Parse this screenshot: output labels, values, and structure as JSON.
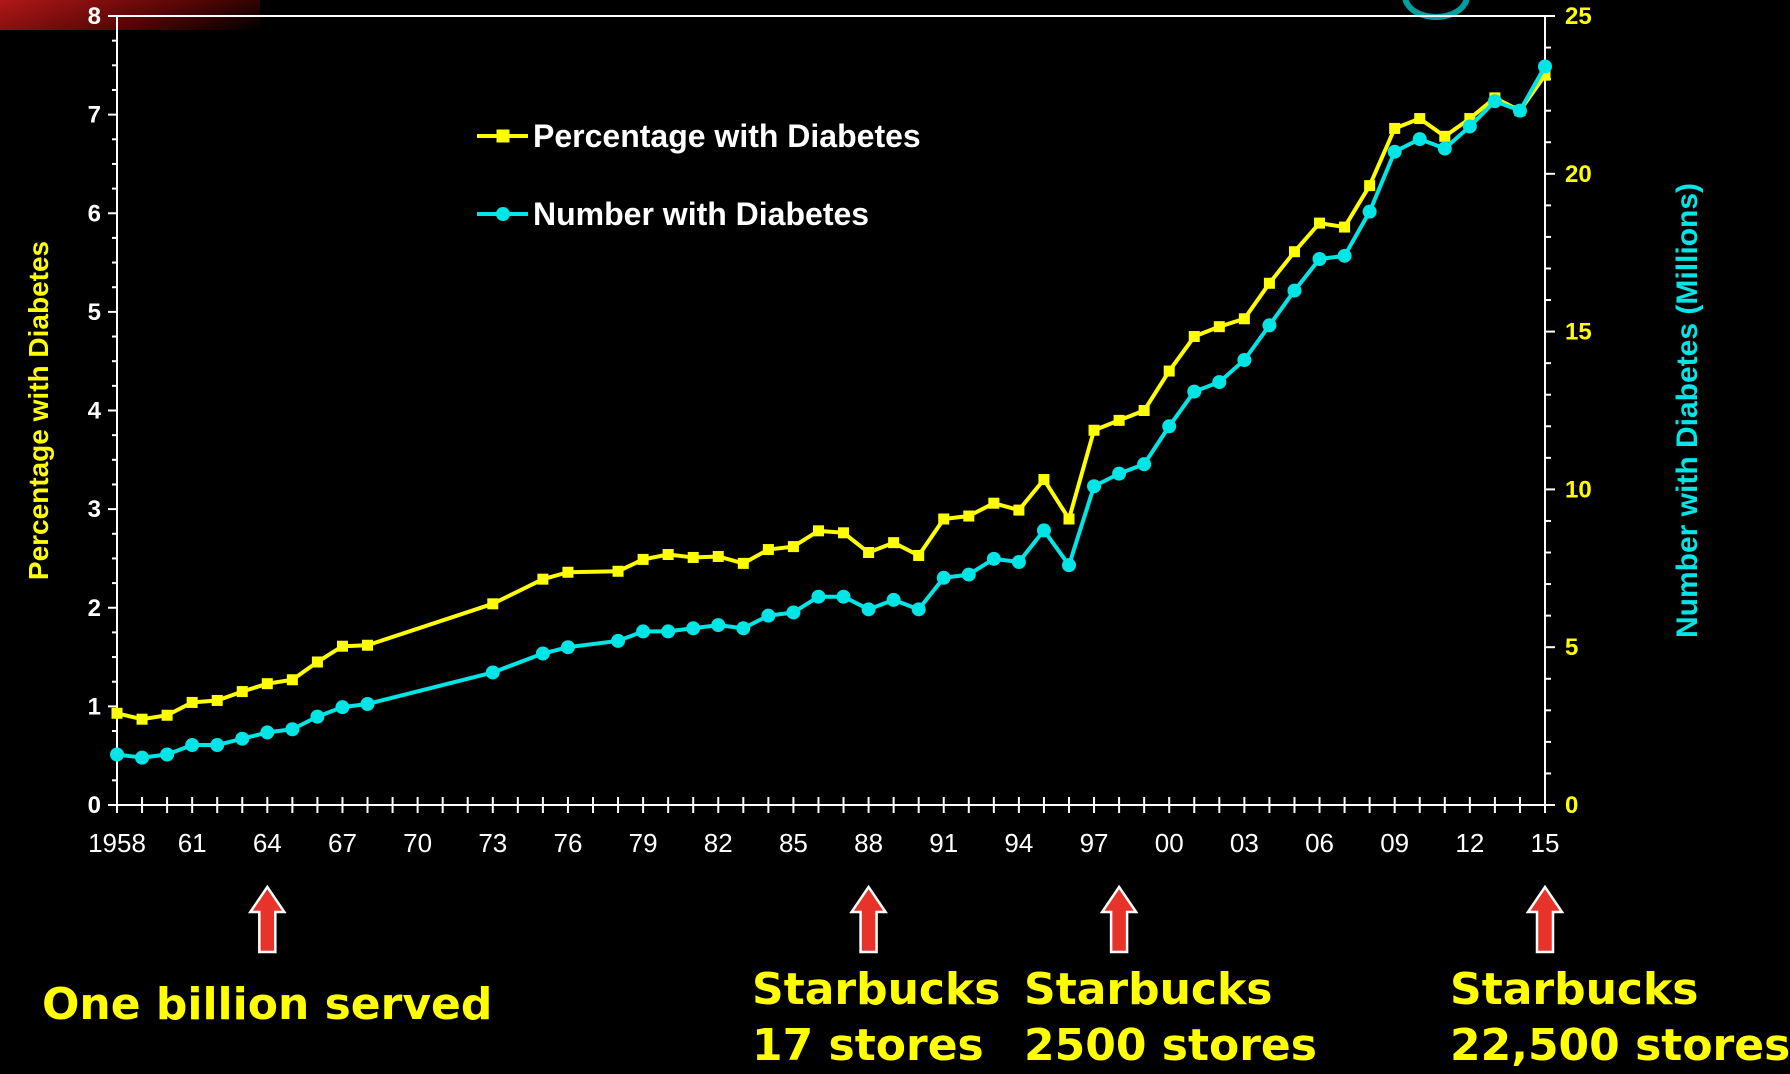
{
  "chart_data": {
    "type": "line",
    "y_left": {
      "label": "Percentage with Diabetes",
      "ticks": [
        "0",
        "1",
        "2",
        "3",
        "4",
        "5",
        "6",
        "7",
        "8"
      ],
      "ylim": [
        0,
        8
      ],
      "color": "#ffff00"
    },
    "y_right": {
      "label": "Number with Diabetes (Millions)",
      "ticks": [
        "0",
        "5",
        "10",
        "15",
        "20",
        "25"
      ],
      "ylim": [
        0,
        25
      ],
      "color": "#00e5e5"
    },
    "x": {
      "xlim": [
        1958,
        2015
      ],
      "tick_values": [
        1958,
        1961,
        1964,
        1967,
        1970,
        1973,
        1976,
        1979,
        1982,
        1985,
        1988,
        1991,
        1994,
        1997,
        2000,
        2003,
        2006,
        2009,
        2012,
        2015
      ],
      "tick_labels": [
        "1958",
        "61",
        "64",
        "67",
        "70",
        "73",
        "76",
        "79",
        "82",
        "85",
        "88",
        "91",
        "94",
        "97",
        "00",
        "03",
        "06",
        "09",
        "12",
        "15"
      ]
    },
    "legend": {
      "placement": "top-left"
    },
    "series": [
      {
        "name": "Percentage with Diabetes",
        "axis": "left",
        "color": "#ffff00",
        "marker": "square",
        "points": [
          [
            1958,
            0.93
          ],
          [
            1959,
            0.87
          ],
          [
            1960,
            0.91
          ],
          [
            1961,
            1.04
          ],
          [
            1962,
            1.06
          ],
          [
            1963,
            1.15
          ],
          [
            1964,
            1.23
          ],
          [
            1965,
            1.27
          ],
          [
            1966,
            1.45
          ],
          [
            1967,
            1.61
          ],
          [
            1968,
            1.62
          ],
          [
            1973,
            2.04
          ],
          [
            1975,
            2.29
          ],
          [
            1976,
            2.36
          ],
          [
            1978,
            2.37
          ],
          [
            1979,
            2.49
          ],
          [
            1980,
            2.54
          ],
          [
            1981,
            2.51
          ],
          [
            1982,
            2.52
          ],
          [
            1983,
            2.45
          ],
          [
            1984,
            2.59
          ],
          [
            1985,
            2.62
          ],
          [
            1986,
            2.78
          ],
          [
            1987,
            2.76
          ],
          [
            1988,
            2.56
          ],
          [
            1989,
            2.66
          ],
          [
            1990,
            2.53
          ],
          [
            1991,
            2.9
          ],
          [
            1992,
            2.93
          ],
          [
            1993,
            3.06
          ],
          [
            1994,
            2.99
          ],
          [
            1995,
            3.3
          ],
          [
            1996,
            2.9
          ],
          [
            1997,
            3.8
          ],
          [
            1998,
            3.9
          ],
          [
            1999,
            4.0
          ],
          [
            2000,
            4.4
          ],
          [
            2001,
            4.75
          ],
          [
            2002,
            4.85
          ],
          [
            2003,
            4.93
          ],
          [
            2004,
            5.29
          ],
          [
            2005,
            5.61
          ],
          [
            2006,
            5.9
          ],
          [
            2007,
            5.86
          ],
          [
            2008,
            6.28
          ],
          [
            2009,
            6.86
          ],
          [
            2010,
            6.96
          ],
          [
            2011,
            6.78
          ],
          [
            2012,
            6.96
          ],
          [
            2013,
            7.17
          ],
          [
            2014,
            7.04
          ],
          [
            2015,
            7.4
          ]
        ]
      },
      {
        "name": "Number with Diabetes",
        "axis": "right",
        "color": "#00e5e5",
        "marker": "circle",
        "points": [
          [
            1958,
            1.6
          ],
          [
            1959,
            1.5
          ],
          [
            1960,
            1.6
          ],
          [
            1961,
            1.9
          ],
          [
            1962,
            1.9
          ],
          [
            1963,
            2.1
          ],
          [
            1964,
            2.3
          ],
          [
            1965,
            2.4
          ],
          [
            1966,
            2.8
          ],
          [
            1967,
            3.1
          ],
          [
            1968,
            3.2
          ],
          [
            1973,
            4.2
          ],
          [
            1975,
            4.8
          ],
          [
            1976,
            5.0
          ],
          [
            1978,
            5.2
          ],
          [
            1979,
            5.5
          ],
          [
            1980,
            5.5
          ],
          [
            1981,
            5.6
          ],
          [
            1982,
            5.7
          ],
          [
            1983,
            5.6
          ],
          [
            1984,
            6.0
          ],
          [
            1985,
            6.1
          ],
          [
            1986,
            6.6
          ],
          [
            1987,
            6.6
          ],
          [
            1988,
            6.2
          ],
          [
            1989,
            6.5
          ],
          [
            1990,
            6.2
          ],
          [
            1991,
            7.2
          ],
          [
            1992,
            7.3
          ],
          [
            1993,
            7.8
          ],
          [
            1994,
            7.7
          ],
          [
            1995,
            8.7
          ],
          [
            1996,
            7.6
          ],
          [
            1997,
            10.1
          ],
          [
            1998,
            10.5
          ],
          [
            1999,
            10.8
          ],
          [
            2000,
            12.0
          ],
          [
            2001,
            13.1
          ],
          [
            2002,
            13.4
          ],
          [
            2003,
            14.1
          ],
          [
            2004,
            15.2
          ],
          [
            2005,
            16.3
          ],
          [
            2006,
            17.3
          ],
          [
            2007,
            17.4
          ],
          [
            2008,
            18.8
          ],
          [
            2009,
            20.7
          ],
          [
            2010,
            21.1
          ],
          [
            2011,
            20.8
          ],
          [
            2012,
            21.5
          ],
          [
            2013,
            22.3
          ],
          [
            2014,
            22.0
          ],
          [
            2015,
            23.4
          ]
        ]
      }
    ],
    "annotations": [
      {
        "year": 1964,
        "lines": [
          "One billion served"
        ]
      },
      {
        "year": 1988,
        "lines": [
          "Starbucks",
          "17 stores"
        ]
      },
      {
        "year": 1998,
        "lines": [
          "Starbucks",
          "2500 stores"
        ]
      },
      {
        "year": 2015,
        "lines": [
          "Starbucks",
          "22,500 stores"
        ]
      }
    ],
    "arrow_color": "#e8332a"
  }
}
